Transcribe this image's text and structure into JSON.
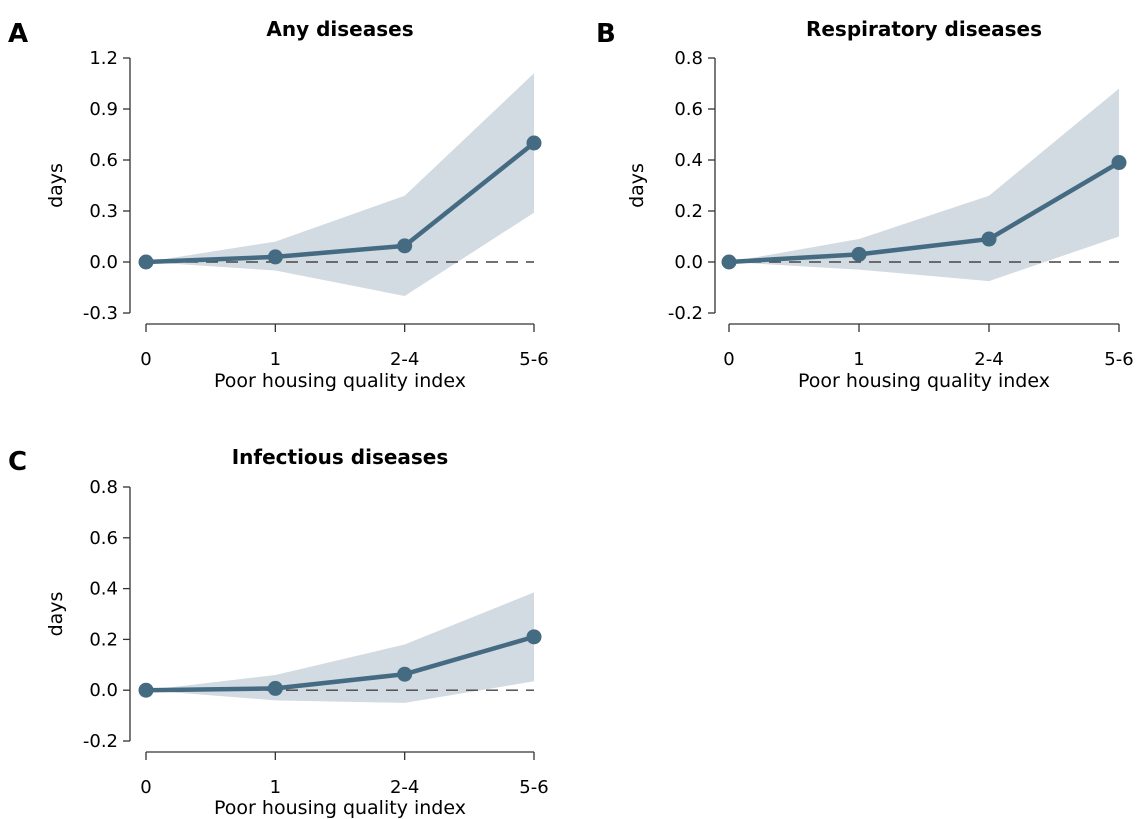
{
  "chart_data": [
    {
      "panel": "A",
      "type": "line",
      "title": "Any diseases",
      "xlabel": "Poor housing quality index",
      "ylabel": "days",
      "categories": [
        "0",
        "1",
        "2-4",
        "5-6"
      ],
      "ylim": [
        -0.3,
        1.2
      ],
      "yticks": [
        -0.3,
        0.0,
        0.3,
        0.6,
        0.9,
        1.2
      ],
      "ytick_labels": [
        "-0.3",
        "0.0",
        "0.3",
        "0.6",
        "0.9",
        "1.2"
      ],
      "series": [
        {
          "values": [
            0.0,
            0.03,
            0.095,
            0.7
          ],
          "ci_lower": [
            0.0,
            -0.05,
            -0.2,
            0.29
          ],
          "ci_upper": [
            0.0,
            0.12,
            0.39,
            1.11
          ]
        }
      ],
      "reference_line": 0
    },
    {
      "panel": "B",
      "type": "line",
      "title": "Respiratory diseases",
      "xlabel": "Poor housing quality index",
      "ylabel": "days",
      "categories": [
        "0",
        "1",
        "2-4",
        "5-6"
      ],
      "ylim": [
        -0.2,
        0.8
      ],
      "yticks": [
        -0.2,
        0.0,
        0.2,
        0.4,
        0.6,
        0.8
      ],
      "ytick_labels": [
        "-0.2",
        "0.0",
        "0.2",
        "0.4",
        "0.6",
        "0.8"
      ],
      "series": [
        {
          "values": [
            0.0,
            0.03,
            0.09,
            0.39
          ],
          "ci_lower": [
            0.0,
            -0.03,
            -0.075,
            0.1
          ],
          "ci_upper": [
            0.0,
            0.09,
            0.26,
            0.68
          ]
        }
      ],
      "reference_line": 0
    },
    {
      "panel": "C",
      "type": "line",
      "title": "Infectious diseases",
      "xlabel": "Poor housing quality index",
      "ylabel": "days",
      "categories": [
        "0",
        "1",
        "2-4",
        "5-6"
      ],
      "ylim": [
        -0.2,
        0.8
      ],
      "yticks": [
        -0.2,
        0.0,
        0.2,
        0.4,
        0.6,
        0.8
      ],
      "ytick_labels": [
        "-0.2",
        "0.0",
        "0.2",
        "0.4",
        "0.6",
        "0.8"
      ],
      "series": [
        {
          "values": [
            0.0,
            0.007,
            0.063,
            0.21
          ],
          "ci_lower": [
            0.0,
            -0.04,
            -0.05,
            0.035
          ],
          "ci_upper": [
            0.0,
            0.06,
            0.18,
            0.385
          ]
        }
      ],
      "reference_line": 0
    }
  ],
  "colors": {
    "line": "#456b82",
    "band": "#d2dae2",
    "axis": "#333333",
    "reference": "#444444"
  }
}
